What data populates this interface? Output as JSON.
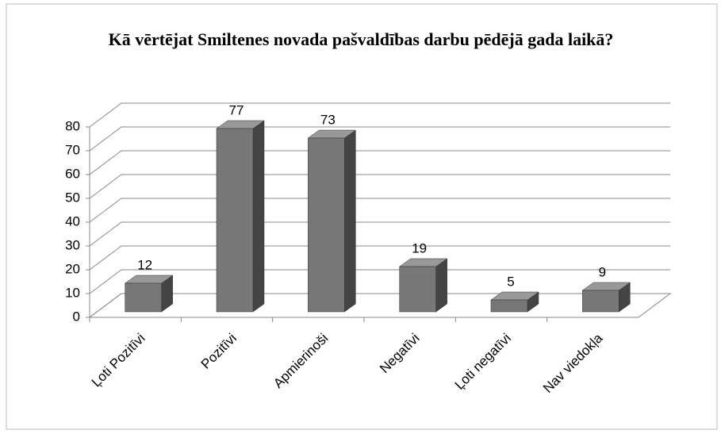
{
  "chart_data": {
    "type": "bar3d",
    "title": "Kā  vērtējat Smiltenes novada pašvaldības darbu pēdējā gada laikā?",
    "categories": [
      "Ļoti Pozitīvi",
      "Pozitīvi",
      "Apmierinoši",
      "Negatīvi",
      "Ļoti negatīvi",
      "Nav viedokļa"
    ],
    "values": [
      12,
      77,
      73,
      19,
      5,
      9
    ],
    "color": "#777777",
    "ylim": [
      0,
      80
    ],
    "yticks": [
      0,
      10,
      20,
      30,
      40,
      50,
      60,
      70,
      80
    ],
    "grid": true
  }
}
